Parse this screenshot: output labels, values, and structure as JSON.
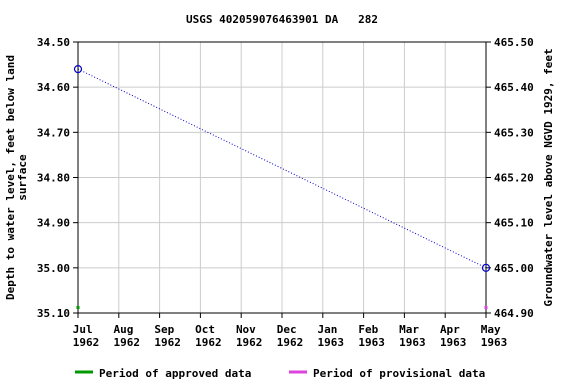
{
  "chart_data": {
    "type": "line",
    "title": "USGS 402059076463901 DA   282",
    "ylabel": [
      "Depth to water level, feet below land",
      "surface"
    ],
    "y2label": "Groundwater level above NGVD 1929, feet",
    "x": [
      "1962-07",
      "1963-05"
    ],
    "series": [
      {
        "name": "Depth to water level",
        "color": "#0000cc",
        "values": [
          34.56,
          35.0
        ]
      }
    ],
    "periods": [
      {
        "name": "Period of approved data",
        "color": "#009900",
        "start": "1962-07",
        "end": "1962-07"
      },
      {
        "name": "Period of provisional data",
        "color": "#dd44dd",
        "start": "1963-05",
        "end": "1963-05"
      }
    ],
    "xlim": [
      "1962-07",
      "1963-05"
    ],
    "xticks": [
      {
        "value": "1962-07",
        "label": "Jul 1962"
      },
      {
        "value": "1962-08",
        "label": "Aug 1962"
      },
      {
        "value": "1962-09",
        "label": "Sep 1962"
      },
      {
        "value": "1962-10",
        "label": "Oct 1962"
      },
      {
        "value": "1962-11",
        "label": "Nov 1962"
      },
      {
        "value": "1962-12",
        "label": "Dec 1962"
      },
      {
        "value": "1963-01",
        "label": "Jan 1963"
      },
      {
        "value": "1963-02",
        "label": "Feb 1963"
      },
      {
        "value": "1963-03",
        "label": "Mar 1963"
      },
      {
        "value": "1963-04",
        "label": "Apr 1963"
      },
      {
        "value": "1963-05",
        "label": "May 1963"
      }
    ],
    "ylim": [
      34.5,
      35.1
    ],
    "yticks": [
      {
        "value": 34.5,
        "label": "34.50"
      },
      {
        "value": 34.6,
        "label": "34.60"
      },
      {
        "value": 34.7,
        "label": "34.70"
      },
      {
        "value": 34.8,
        "label": "34.80"
      },
      {
        "value": 34.9,
        "label": "34.90"
      },
      {
        "value": 35.0,
        "label": "35.00"
      },
      {
        "value": 35.1,
        "label": "35.10"
      }
    ],
    "y2lim": [
      465.5,
      464.9
    ],
    "y2ticks": [
      {
        "value": 465.5,
        "label": "465.50"
      },
      {
        "value": 465.4,
        "label": "465.40"
      },
      {
        "value": 465.3,
        "label": "465.30"
      },
      {
        "value": 465.2,
        "label": "465.20"
      },
      {
        "value": 465.1,
        "label": "465.10"
      },
      {
        "value": 465.0,
        "label": "465.00"
      },
      {
        "value": 464.9,
        "label": "464.90"
      }
    ],
    "grid": true
  }
}
